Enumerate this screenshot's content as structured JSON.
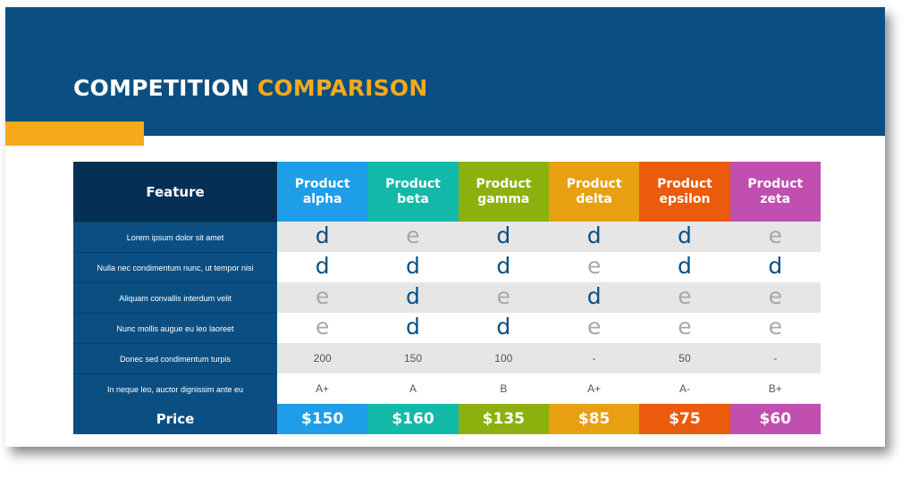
{
  "title": {
    "part1": "COMPETITION",
    "part2": "COMPARISON"
  },
  "colors": {
    "navy": "#0b4f82",
    "dark_navy": "#062f55",
    "orange_accent": "#f7a81b",
    "check_on": "#0b4f82",
    "check_off": "#a8a8a8",
    "products": [
      "#1e9ee8",
      "#13b9a8",
      "#8cb10f",
      "#e8a010",
      "#ea5b0c",
      "#c14fb0"
    ]
  },
  "table": {
    "feature_header": "Feature",
    "products": [
      {
        "line1": "Product",
        "line2": "alpha"
      },
      {
        "line1": "Product",
        "line2": "beta"
      },
      {
        "line1": "Product",
        "line2": "gamma"
      },
      {
        "line1": "Product",
        "line2": "delta"
      },
      {
        "line1": "Product",
        "line2": "epsilon"
      },
      {
        "line1": "Product",
        "line2": "zeta"
      }
    ],
    "rows": [
      {
        "feature": "Lorem ipsum dolor sit amet",
        "kind": "mark",
        "values": [
          "d",
          "e",
          "d",
          "d",
          "d",
          "e"
        ]
      },
      {
        "feature": "Nulla nec condimentum nunc, ut tempor nisi",
        "kind": "mark",
        "values": [
          "d",
          "d",
          "d",
          "e",
          "d",
          "d"
        ]
      },
      {
        "feature": "Aliquam convallis interdum velit",
        "kind": "mark",
        "values": [
          "e",
          "d",
          "e",
          "d",
          "e",
          "e"
        ]
      },
      {
        "feature": "Nunc mollis augue eu leo laoreet",
        "kind": "mark",
        "values": [
          "e",
          "d",
          "d",
          "e",
          "e",
          "e"
        ]
      },
      {
        "feature": "Donec sed condimentum turpis",
        "kind": "text",
        "values": [
          "200",
          "150",
          "100",
          "-",
          "50",
          "-"
        ]
      },
      {
        "feature": "In neque leo, auctor dignissim ante eu",
        "kind": "text",
        "values": [
          "A+",
          "A",
          "B",
          "A+",
          "A-",
          "B+"
        ]
      }
    ],
    "price_label": "Price",
    "prices": [
      "$150",
      "$160",
      "$135",
      "$85",
      "$75",
      "$60"
    ]
  }
}
